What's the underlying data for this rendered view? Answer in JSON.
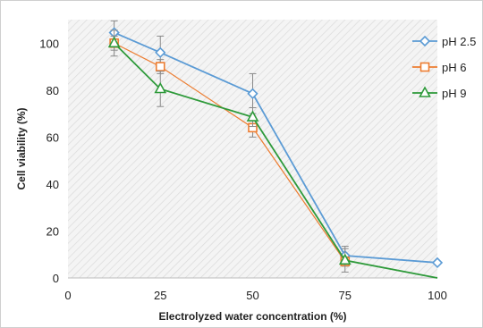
{
  "chart_data": {
    "type": "line",
    "title": "",
    "xlabel": "Electrolyzed water concentration (%)",
    "ylabel": "Cell viability (%)",
    "xlim": [
      0,
      100
    ],
    "ylim": [
      0,
      110
    ],
    "xticks": [
      0,
      25,
      50,
      75,
      100
    ],
    "yticks": [
      0,
      20,
      40,
      60,
      80,
      100
    ],
    "grid": "diagonal hatch background",
    "legend_position": "top-right",
    "series": [
      {
        "name": "pH 2.5",
        "color": "#5b9bd5",
        "marker": "diamond",
        "x": [
          12.5,
          25,
          50,
          75,
          100
        ],
        "y": [
          104.5,
          96,
          78.5,
          9.5,
          6.5
        ],
        "err": [
          5,
          7,
          8.5,
          4,
          0
        ]
      },
      {
        "name": "pH 6",
        "color": "#ed7d31",
        "marker": "square",
        "x": [
          12.5,
          25,
          50,
          75,
          100
        ],
        "y": [
          100,
          90,
          64,
          7,
          null
        ],
        "err": [
          3,
          3,
          4,
          2,
          0
        ]
      },
      {
        "name": "pH 9",
        "color": "#2e9a3a",
        "marker": "triangle",
        "x": [
          12.5,
          25,
          50,
          75,
          100
        ],
        "y": [
          100,
          80.5,
          68.5,
          7.5,
          0
        ],
        "err": [
          5.5,
          7.5,
          4,
          5,
          0
        ]
      }
    ]
  }
}
